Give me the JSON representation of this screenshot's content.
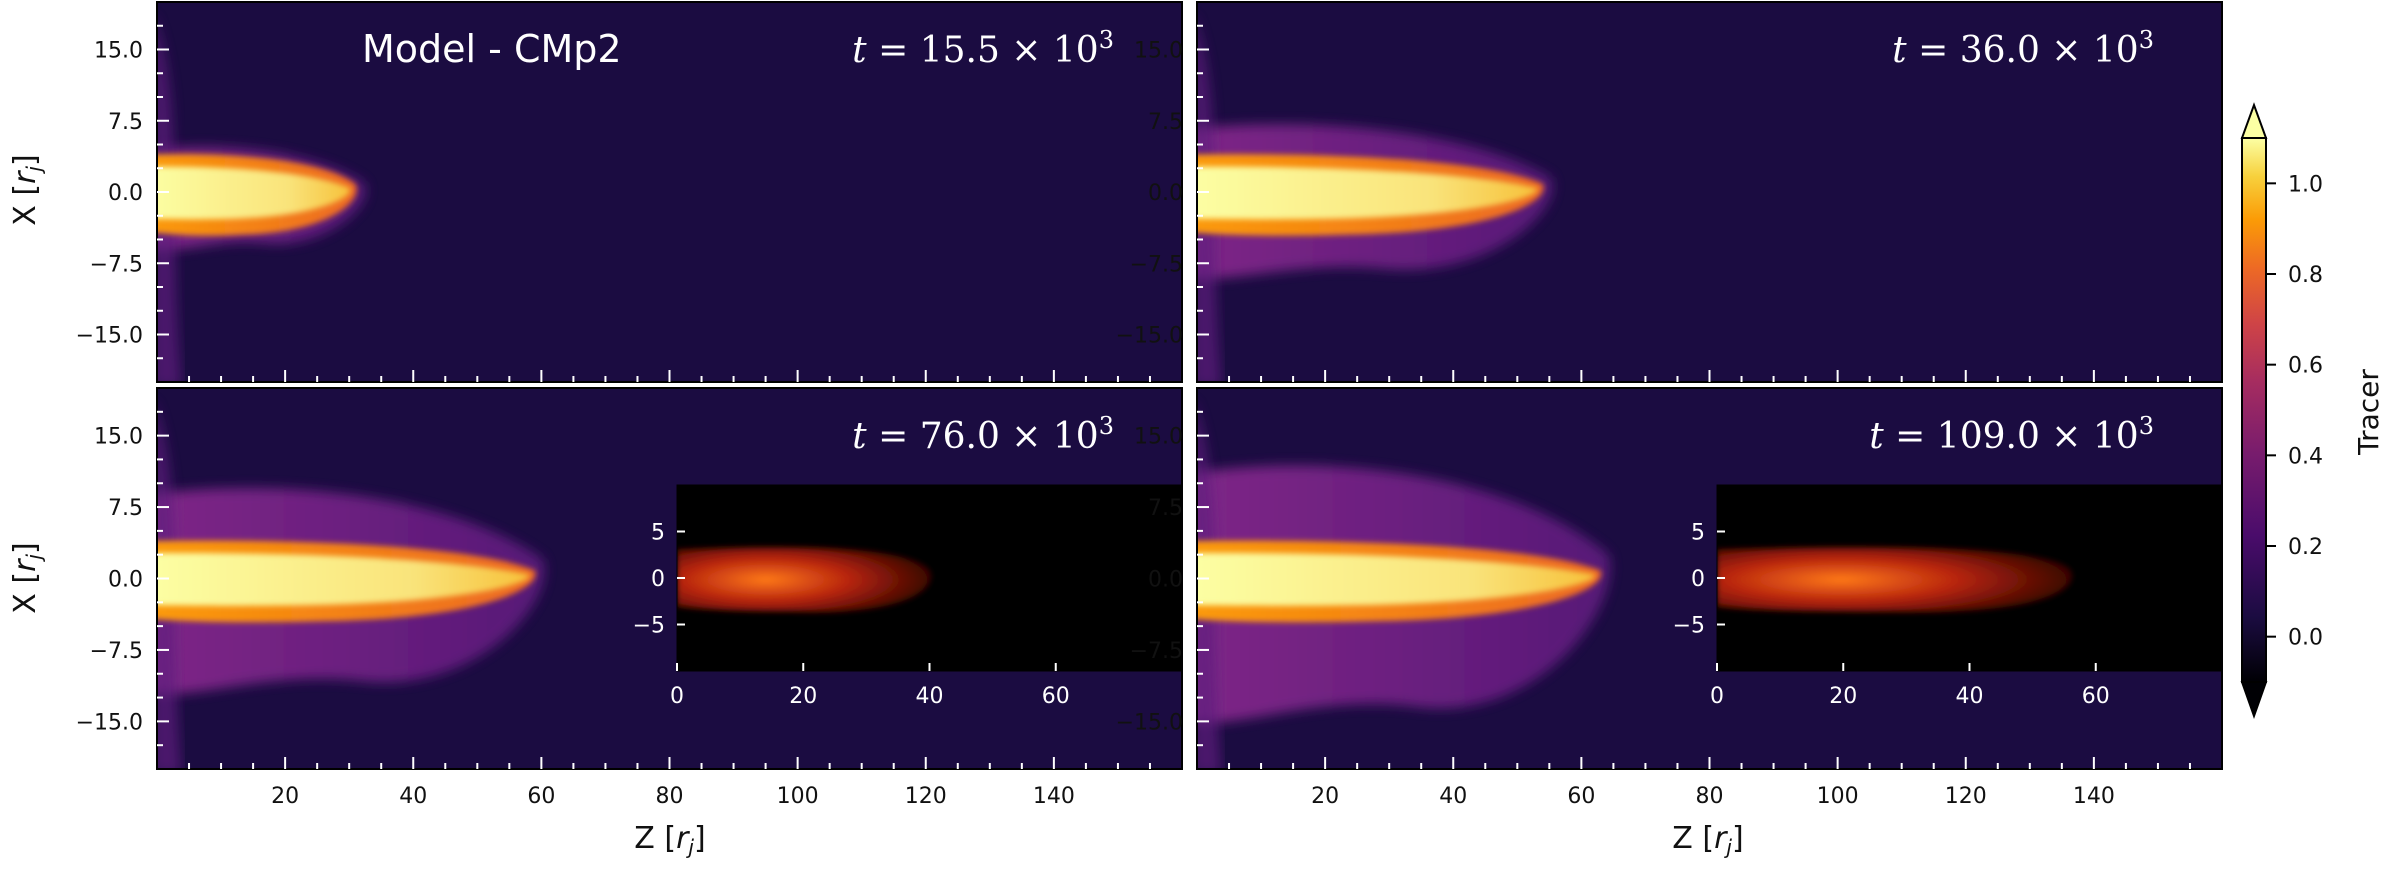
{
  "chart_data": {
    "type": "heatmap",
    "model_label": "Model - CMp2",
    "colormap": "inferno",
    "colorbar": {
      "label": "Tracer",
      "ticks": [
        "1.0",
        "0.8",
        "0.6",
        "0.4",
        "0.2",
        "0.0"
      ],
      "tick_values": [
        1.0,
        0.8,
        0.6,
        0.4,
        0.2,
        0.0
      ],
      "range": [
        -0.1,
        1.1
      ],
      "extend": "both"
    },
    "axes": {
      "x_label_main": "Z [",
      "x_label_var": "r",
      "x_label_sub": "j",
      "x_label_close": "]",
      "y_label_main": "X [",
      "y_label_var": "r",
      "y_label_sub": "j",
      "y_label_close": "]",
      "xlim": [
        0,
        160
      ],
      "ylim": [
        -20,
        20
      ],
      "x_ticks": [
        "20",
        "40",
        "60",
        "80",
        "100",
        "120",
        "140"
      ],
      "x_tick_values": [
        20,
        40,
        60,
        80,
        100,
        120,
        140
      ],
      "y_ticks": [
        "15.0",
        "7.5",
        "0.0",
        "−7.5",
        "−15.0"
      ],
      "y_tick_values": [
        15,
        7.5,
        0,
        -7.5,
        -15
      ]
    },
    "panels": [
      {
        "t_prefix": "t = ",
        "t_value": "15.5",
        "t_mult": " × 10",
        "t_exp": "3",
        "jet_head_z": 31,
        "has_inset": false
      },
      {
        "t_prefix": "t = ",
        "t_value": "36.0",
        "t_mult": " × 10",
        "t_exp": "3",
        "jet_head_z": 54,
        "has_inset": false
      },
      {
        "t_prefix": "t = ",
        "t_value": "76.0",
        "t_mult": " × 10",
        "t_exp": "3",
        "jet_head_z": 59,
        "has_inset": true,
        "inset_extent_z": 40
      },
      {
        "t_prefix": "t = ",
        "t_value": "109.0",
        "t_mult": " × 10",
        "t_exp": "3",
        "jet_head_z": 63,
        "has_inset": true,
        "inset_extent_z": 56
      }
    ],
    "inset": {
      "xlim": [
        0,
        80
      ],
      "ylim": [
        -10,
        10
      ],
      "x_ticks": [
        "0",
        "20",
        "40",
        "60"
      ],
      "x_tick_values": [
        0,
        20,
        40,
        60
      ],
      "y_ticks": [
        "5",
        "0",
        "−5"
      ],
      "y_tick_values": [
        5,
        0,
        -5
      ]
    }
  }
}
